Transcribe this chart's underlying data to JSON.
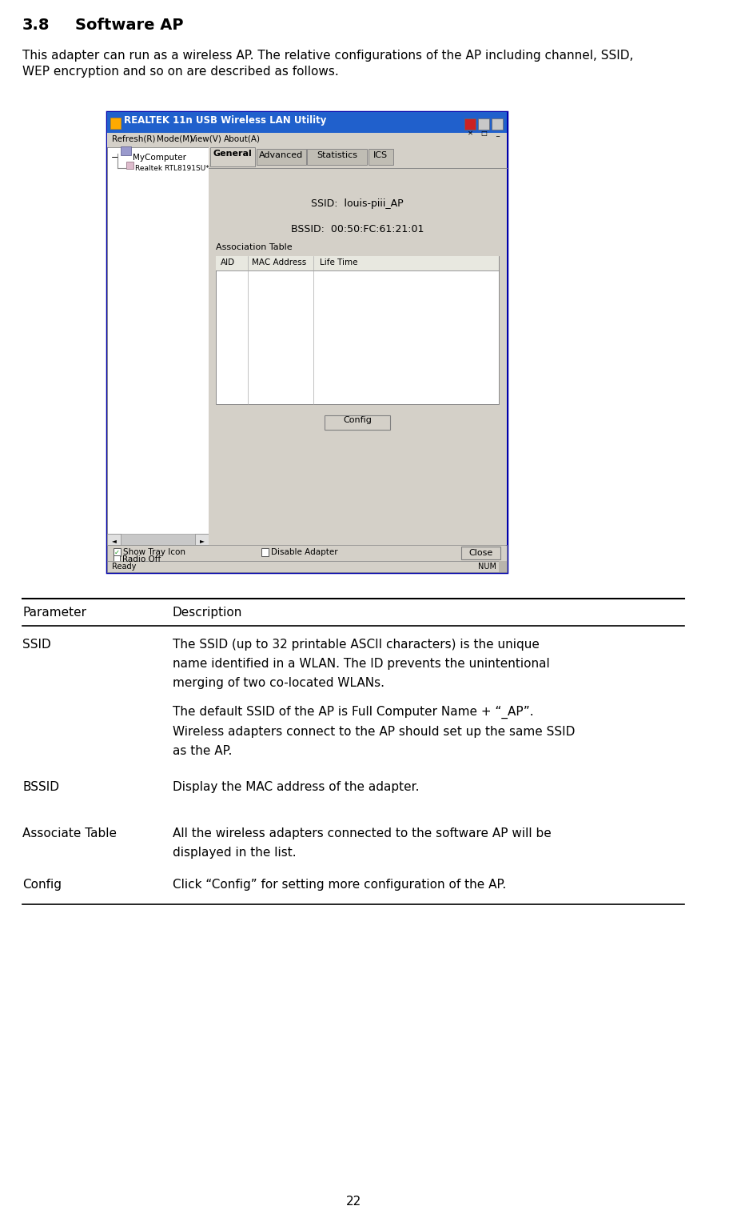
{
  "title_num": "3.8",
  "title_text": "Software AP",
  "intro_line1": "This adapter can run as a wireless AP. The relative configurations of the AP including channel, SSID,",
  "intro_line2": "WEP encryption and so on are described as follows.",
  "page_number": "22",
  "screenshot": {
    "title_bar": "REALTEK 11n USB Wireless LAN Utility",
    "menu_items": [
      "Refresh(R)",
      "Mode(M)",
      "View(V)",
      "About(A)"
    ],
    "tree_root": "MyComputer",
    "tree_child": "Realtek RTL8191SU*",
    "tabs": [
      "General",
      "Advanced",
      "Statistics",
      "ICS"
    ],
    "ssid_text": "SSID:  louis-piii_AP",
    "bssid_text": "BSSID:  00:50:FC:61:21:01",
    "assoc_label": "Association Table",
    "table_headers": [
      "AID",
      "MAC Address",
      "Life Time"
    ],
    "config_btn": "Config",
    "show_tray": "Show Tray Icon",
    "radio_off": "Radio Off",
    "disable_adapter": "Disable Adapter",
    "close_btn": "Close",
    "status_l": "Ready",
    "status_r": "NUM"
  },
  "table_rows": [
    [
      "SSID",
      "The SSID (up to 32 printable ASCII characters) is the unique\nname identified in a WLAN. The ID prevents the unintentional\nmerging of two co-located WLANs.",
      "The default SSID of the AP is Full Computer Name + “_AP”.\nWireless adapters connect to the AP should set up the same SSID\nas the AP."
    ],
    [
      "BSSID",
      "Display the MAC address of the adapter.",
      ""
    ],
    [
      "Associate Table",
      "All the wireless adapters connected to the software AP will be\ndisplayed in the list.",
      ""
    ],
    [
      "Config",
      "Click “Config” for setting more configuration of the AP.",
      ""
    ]
  ],
  "colors": {
    "bg": "#ffffff",
    "black": "#000000",
    "titlebar_bg": "#2060cc",
    "titlebar_txt": "#ffffff",
    "win_bg": "#d4d0c8",
    "win_border": "#0000aa",
    "tab_active_bg": "#d4d0c8",
    "tab_inactive_bg": "#c0bdb4",
    "content_bg": "#d4d0c8",
    "tree_bg": "#ffffff",
    "assoc_bg": "#ffffff",
    "btn_bg": "#d4d0c8",
    "btn_border": "#808080",
    "statusbar_bg": "#d4d0c8",
    "menubar_bg": "#d4d0c8",
    "line_dark": "#000000",
    "line_mid": "#888888",
    "line_light": "#aaaaaa"
  }
}
